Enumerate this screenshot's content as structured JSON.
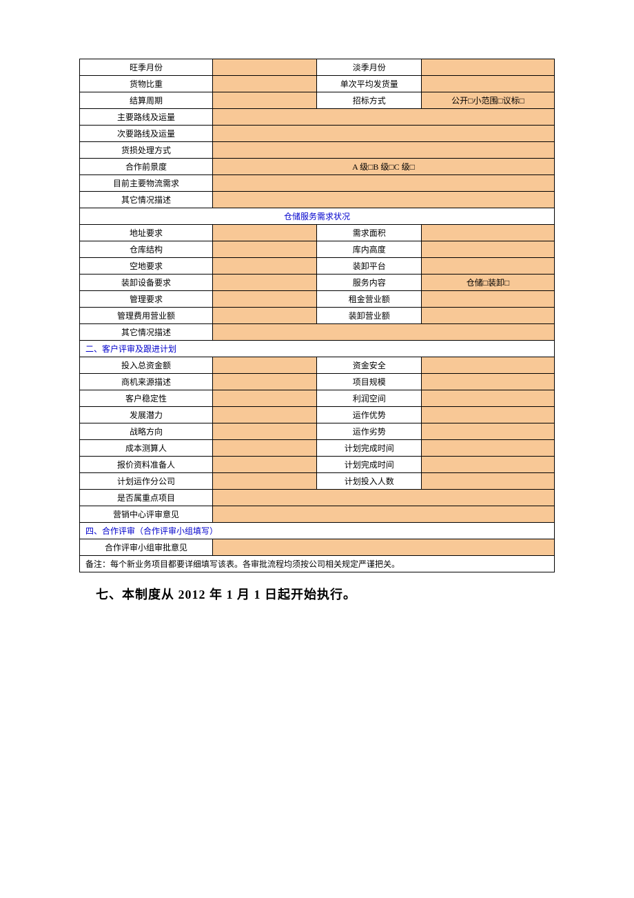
{
  "colors": {
    "fill_bg": "#f8c896",
    "border": "#000000",
    "section_text": "#0000cc",
    "page_bg": "#ffffff"
  },
  "table": {
    "col_widths_pct": [
      28,
      22,
      22,
      28
    ],
    "rows": [
      {
        "type": "pair",
        "l1": "旺季月份",
        "l2": "淡季月份",
        "v1": "",
        "v2": ""
      },
      {
        "type": "pair",
        "l1": "货物比重",
        "l2": "单次平均发货量",
        "v1": "",
        "v2": ""
      },
      {
        "type": "pair",
        "l1": "结算周期",
        "l2": "招标方式",
        "v1": "",
        "v2": "公开□小范围□议标□"
      },
      {
        "type": "single",
        "l": "主要路线及运量",
        "v": ""
      },
      {
        "type": "single",
        "l": "次要路线及运量",
        "v": ""
      },
      {
        "type": "single",
        "l": "货损处理方式",
        "v": ""
      },
      {
        "type": "single",
        "l": "合作前景度",
        "v": "A 级□B 级□C 级□"
      },
      {
        "type": "single",
        "l": "目前主要物流需求",
        "v": ""
      },
      {
        "type": "single",
        "l": "其它情况描述",
        "v": ""
      },
      {
        "type": "section-center",
        "text": "仓储服务需求状况"
      },
      {
        "type": "pair",
        "l1": "地址要求",
        "l2": "需求面积",
        "v1": "",
        "v2": ""
      },
      {
        "type": "pair",
        "l1": "仓库结构",
        "l2": "库内高度",
        "v1": "",
        "v2": ""
      },
      {
        "type": "pair",
        "l1": "空地要求",
        "l2": "装卸平台",
        "v1": "",
        "v2": ""
      },
      {
        "type": "pair",
        "l1": "装卸设备要求",
        "l2": "服务内容",
        "v1": "",
        "v2": "仓储□装卸□"
      },
      {
        "type": "pair",
        "l1": "管理要求",
        "l2": "租金营业额",
        "v1": "",
        "v2": ""
      },
      {
        "type": "pair",
        "l1": "管理费用营业额",
        "l2": "装卸营业额",
        "v1": "",
        "v2": ""
      },
      {
        "type": "single",
        "l": "其它情况描述",
        "v": ""
      },
      {
        "type": "section",
        "text": "二、客户评审及跟进计划"
      },
      {
        "type": "pair",
        "l1": "投入总资金额",
        "l2": "资金安全",
        "v1": "",
        "v2": ""
      },
      {
        "type": "pair",
        "l1": "商机来源描述",
        "l2": "项目规模",
        "v1": "",
        "v2": ""
      },
      {
        "type": "pair",
        "l1": "客户稳定性",
        "l2": "利润空间",
        "v1": "",
        "v2": ""
      },
      {
        "type": "pair",
        "l1": "发展潜力",
        "l2": "运作优势",
        "v1": "",
        "v2": ""
      },
      {
        "type": "pair",
        "l1": "战略方向",
        "l2": "运作劣势",
        "v1": "",
        "v2": ""
      },
      {
        "type": "pair",
        "l1": "成本测算人",
        "l2": "计划完成时间",
        "v1": "",
        "v2": ""
      },
      {
        "type": "pair",
        "l1": "报价资料准备人",
        "l2": "计划完成时间",
        "v1": "",
        "v2": ""
      },
      {
        "type": "pair",
        "l1": "计划运作分公司",
        "l2": "计划投入人数",
        "v1": "",
        "v2": ""
      },
      {
        "type": "single",
        "l": "是否属重点项目",
        "v": ""
      },
      {
        "type": "single",
        "l": "营销中心评审意见",
        "v": ""
      },
      {
        "type": "section",
        "text": "四、合作评审（合作评审小组填写）"
      },
      {
        "type": "single",
        "l": "合作评审小组审批意见",
        "v": ""
      },
      {
        "type": "footnote",
        "text": "备注：每个新业务项目都要详细填写该表。各审批流程均须按公司相关规定严谨把关。"
      }
    ]
  },
  "footer": "七、本制度从 2012 年 1 月 1 日起开始执行。"
}
